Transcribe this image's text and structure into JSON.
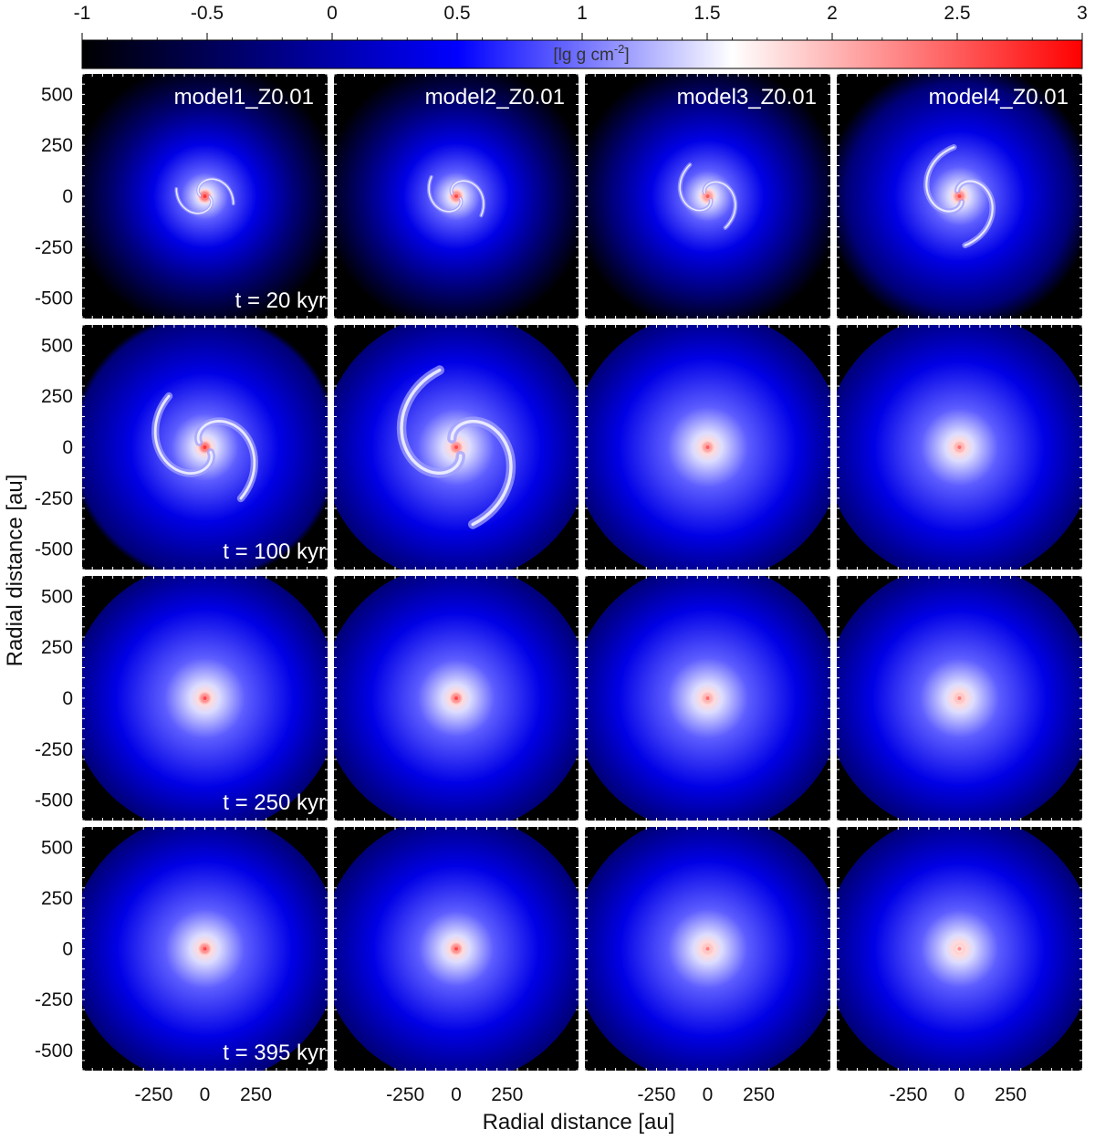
{
  "chart_data": {
    "type": "heatmap",
    "colorbar": {
      "label_main": "[lg g cm",
      "label_sup": "-2",
      "label_end": "]",
      "min": -1,
      "max": 3,
      "ticks": [
        -1,
        -0.5,
        0,
        0.5,
        1,
        1.5,
        2,
        2.5,
        3
      ],
      "tick_labels": [
        "-1",
        "-0.5",
        "0",
        "0.5",
        "1",
        "1.5",
        "2",
        "2.5",
        "3"
      ],
      "colors": [
        "#000000",
        "#0000ff",
        "#ffffff",
        "#ff0000"
      ],
      "color_stops": [
        -1,
        0.5,
        1.6,
        3
      ]
    },
    "xlabel": "Radial distance [au]",
    "ylabel": "Radial distance [au]",
    "xlim": [
      -600,
      600
    ],
    "ylim": [
      -600,
      600
    ],
    "xticks": [
      -250,
      0,
      250
    ],
    "xtick_labels": [
      "-250",
      "0",
      "250"
    ],
    "yticks": [
      500,
      250,
      0,
      -250,
      -500
    ],
    "ytick_labels": [
      "500",
      "250",
      "0",
      "-250",
      "-500"
    ],
    "models": [
      "model1_Z0.01",
      "model2_Z0.01",
      "model3_Z0.01",
      "model4_Z0.01"
    ],
    "times": [
      "t = 20 kyr",
      "t = 100 kyr",
      "t = 250 kyr",
      "t = 395 kyr"
    ],
    "panels": [
      [
        {
          "core": 2.7,
          "envelope": "spiral",
          "spread": 0.1
        },
        {
          "core": 2.6,
          "envelope": "spiral",
          "spread": 0.12
        },
        {
          "core": 2.5,
          "envelope": "spiral",
          "spread": 0.16
        },
        {
          "core": 2.6,
          "envelope": "spiral",
          "spread": 0.28
        }
      ],
      [
        {
          "core": 2.7,
          "envelope": "spiral",
          "spread": 0.4
        },
        {
          "core": 2.6,
          "envelope": "spiral",
          "spread": 0.55
        },
        {
          "core": 2.5,
          "envelope": "smooth",
          "spread": 0.6
        },
        {
          "core": 2.4,
          "envelope": "smooth",
          "spread": 0.55
        }
      ],
      [
        {
          "core": 2.6,
          "envelope": "smooth",
          "spread": 0.6
        },
        {
          "core": 2.6,
          "envelope": "smooth",
          "spread": 0.55
        },
        {
          "core": 2.4,
          "envelope": "smooth",
          "spread": 0.6
        },
        {
          "core": 2.3,
          "envelope": "smooth",
          "spread": 0.58
        }
      ],
      [
        {
          "core": 2.6,
          "envelope": "smooth",
          "spread": 0.58
        },
        {
          "core": 2.6,
          "envelope": "smooth",
          "spread": 0.52
        },
        {
          "core": 2.3,
          "envelope": "smooth",
          "spread": 0.58
        },
        {
          "core": 2.2,
          "envelope": "smooth",
          "spread": 0.55
        }
      ]
    ]
  }
}
